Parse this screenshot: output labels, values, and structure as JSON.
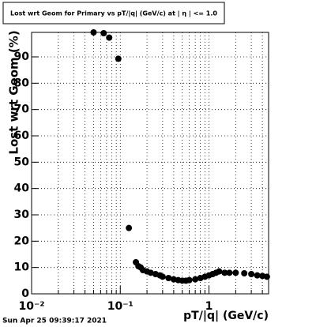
{
  "chart_data": {
    "type": "scatter",
    "title": "Lost wrt Geom for Primary vs pT/|q| (GeV/c) at | η | <= 1.0",
    "x_label": "pT/|q| (GeV/c)",
    "y_label": "Lost wrt Geom (%)",
    "footer": "Sun Apr 25 09:39:17 2021",
    "x_log": true,
    "grid": true,
    "color": "#000000",
    "xlim": [
      0.01,
      4.7
    ],
    "ylim": [
      0,
      99.3
    ],
    "xticks": [
      {
        "value": 0.01,
        "label": "10⁻²"
      },
      {
        "value": 0.1,
        "label": "10⁻¹"
      },
      1
    ],
    "yticks": [
      0,
      10,
      20,
      30,
      40,
      50,
      60,
      70,
      80,
      90
    ],
    "x": [
      0.05,
      0.065,
      0.075,
      0.095,
      0.125,
      0.15,
      0.16,
      0.17,
      0.18,
      0.2,
      0.22,
      0.25,
      0.28,
      0.3,
      0.35,
      0.4,
      0.45,
      0.5,
      0.55,
      0.6,
      0.7,
      0.8,
      0.9,
      1.0,
      1.1,
      1.2,
      1.3,
      1.5,
      1.7,
      2.0,
      2.5,
      3.0,
      3.5,
      4.0,
      4.5
    ],
    "values": [
      99.3,
      99,
      97.3,
      89.3,
      25,
      12,
      10.5,
      10,
      9,
      8.5,
      8,
      7.5,
      7,
      6.5,
      6,
      5.5,
      5.2,
      5,
      5,
      5.2,
      5.5,
      6,
      6.5,
      7,
      7.5,
      8,
      8.5,
      8,
      8,
      8,
      7.8,
      7.5,
      7,
      6.8,
      6.5
    ]
  }
}
